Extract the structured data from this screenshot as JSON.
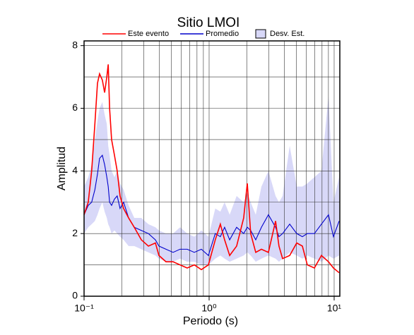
{
  "chart_data": {
    "type": "line",
    "title": "Sitio LMOI",
    "xlabel": "Periodo (s)",
    "ylabel": "Amplitud",
    "xscale": "log",
    "grid": true,
    "xlim": [
      0.1,
      11.1
    ],
    "ylim": [
      0,
      8.15
    ],
    "xticks": [
      {
        "value": 0.1,
        "label": "10⁻¹"
      },
      {
        "value": 1,
        "label": "10⁰"
      },
      {
        "value": 10,
        "label": "10¹"
      }
    ],
    "xminorticks": [
      0.2,
      0.3,
      0.4,
      0.5,
      0.6,
      0.7,
      0.8,
      0.9,
      2,
      3,
      4,
      5,
      6,
      7,
      8,
      9
    ],
    "yticks": [
      0,
      2,
      4,
      6,
      8
    ],
    "yminorticks": [
      1,
      3,
      5,
      7
    ],
    "x": [
      0.1,
      0.108,
      0.115,
      0.122,
      0.128,
      0.133,
      0.14,
      0.146,
      0.152,
      0.156,
      0.16,
      0.166,
      0.175,
      0.184,
      0.194,
      0.207,
      0.227,
      0.252,
      0.287,
      0.327,
      0.372,
      0.397,
      0.452,
      0.515,
      0.586,
      0.668,
      0.761,
      0.867,
      0.987,
      1.12,
      1.23,
      1.33,
      1.46,
      1.66,
      1.89,
      2.02,
      2.15,
      2.36,
      2.62,
      2.98,
      3.4,
      3.62,
      3.87,
      4.41,
      5.02,
      5.57,
      6.1,
      6.95,
      7.91,
      9.01,
      9.87,
      10.96
    ],
    "series": [
      {
        "name": "Este evento",
        "color": "#ff0000",
        "values": [
          2.6,
          3.0,
          4.0,
          5.5,
          6.8,
          7.1,
          6.9,
          6.5,
          7.0,
          7.4,
          6.0,
          5.0,
          4.5,
          4.0,
          3.2,
          2.8,
          2.5,
          2.2,
          1.8,
          1.6,
          1.7,
          1.3,
          1.1,
          1.1,
          1.0,
          0.9,
          1.0,
          0.85,
          1.0,
          1.8,
          2.3,
          1.8,
          1.3,
          1.6,
          2.5,
          3.6,
          2.0,
          1.4,
          1.5,
          1.4,
          2.4,
          1.6,
          1.2,
          1.3,
          1.7,
          1.6,
          1.0,
          0.9,
          1.3,
          1.1,
          0.9,
          0.75
        ]
      },
      {
        "name": "Promedio",
        "color": "#0000cc",
        "values": [
          2.6,
          2.9,
          3.0,
          3.4,
          3.9,
          4.4,
          4.5,
          4.2,
          3.8,
          3.5,
          3.0,
          2.9,
          3.1,
          3.2,
          2.8,
          3.0,
          2.5,
          2.2,
          2.1,
          2.0,
          1.8,
          1.6,
          1.5,
          1.4,
          1.5,
          1.5,
          1.4,
          1.5,
          1.3,
          2.0,
          1.9,
          2.2,
          1.8,
          2.2,
          2.0,
          2.2,
          2.1,
          1.8,
          2.2,
          2.6,
          2.2,
          1.9,
          2.0,
          2.3,
          2.0,
          1.9,
          2.0,
          2.0,
          2.3,
          2.6,
          1.9,
          2.4
        ]
      },
      {
        "name": "Desv. Est.",
        "color": "#d8d8f8",
        "lower": [
          2.0,
          2.2,
          2.3,
          2.4,
          2.6,
          2.8,
          3.0,
          2.7,
          2.5,
          2.3,
          2.2,
          2.0,
          2.1,
          2.0,
          1.9,
          1.8,
          1.6,
          1.6,
          1.5,
          1.4,
          1.3,
          1.2,
          1.1,
          1.1,
          1.2,
          1.1,
          1.1,
          1.0,
          1.0,
          1.2,
          1.3,
          1.2,
          1.1,
          1.2,
          1.3,
          1.4,
          1.3,
          1.1,
          1.2,
          1.3,
          1.2,
          1.1,
          1.2,
          1.4,
          1.3,
          1.2,
          1.3,
          1.2,
          1.1,
          1.3,
          1.2,
          1.3
        ],
        "upper": [
          3.5,
          3.8,
          4.2,
          5.0,
          5.6,
          6.0,
          6.2,
          5.8,
          5.5,
          4.8,
          4.5,
          4.0,
          3.8,
          4.0,
          3.6,
          3.4,
          2.9,
          2.5,
          2.5,
          2.3,
          2.2,
          2.1,
          2.0,
          2.0,
          2.2,
          2.0,
          1.9,
          2.1,
          1.9,
          2.8,
          2.7,
          3.0,
          2.6,
          3.2,
          3.0,
          3.3,
          3.0,
          2.6,
          3.5,
          4.0,
          3.2,
          3.0,
          3.2,
          4.8,
          3.5,
          3.5,
          3.6,
          3.8,
          4.0,
          6.4,
          3.0,
          3.8
        ]
      }
    ]
  }
}
